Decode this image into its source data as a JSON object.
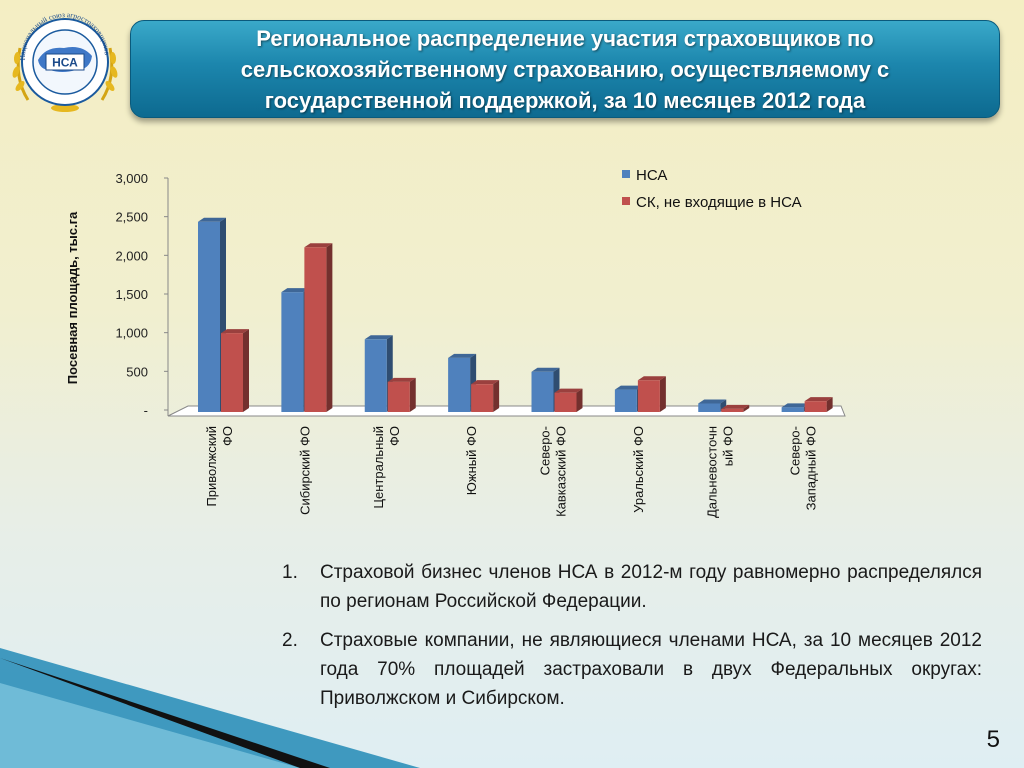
{
  "logo": {
    "text": "НСА",
    "ring_text": "Национальный союз агростраховщиков"
  },
  "title": "Региональное распределение участия страховщиков по\nсельскохозяйственному страхованию, осуществляемому с\nгосударственной поддержкой, за 10 месяцев 2012 года",
  "chart_data": {
    "type": "bar",
    "ylabel": "Посевная площадь, тыс.га",
    "ylim": [
      0,
      3000
    ],
    "yticks": [
      "-",
      "500",
      "1,000",
      "1,500",
      "2,000",
      "2,500",
      "3,000"
    ],
    "categories": [
      "Приволжский\nФО",
      "Сибирский ФО",
      "Центральный\nФО",
      "Южный ФО",
      "Северо-\nКавказский ФО",
      "Уральский ФО",
      "Дальневосточн\nый ФО",
      "Северо-\nЗападный ФО"
    ],
    "series": [
      {
        "name": "НСА",
        "color": "#4f81bd",
        "values": [
          2460,
          1550,
          940,
          700,
          520,
          290,
          110,
          60
        ]
      },
      {
        "name": "СК, не входящие в НСА",
        "color": "#c0504d",
        "values": [
          1020,
          2130,
          390,
          360,
          250,
          410,
          40,
          140
        ]
      }
    ],
    "legend_position": "top-right",
    "grid": false
  },
  "notes": [
    {
      "num": "1.",
      "text": "Страховой бизнес членов НСА в 2012-м году равномерно распределялся по регионам Российской Федерации."
    },
    {
      "num": "2.",
      "text": "Страховые компании, не являющиеся членами НСА, за 10 месяцев 2012 года 70% площадей застраховали в двух Федеральных округах: Приволжском и Сибирском."
    }
  ],
  "page_number": "5"
}
